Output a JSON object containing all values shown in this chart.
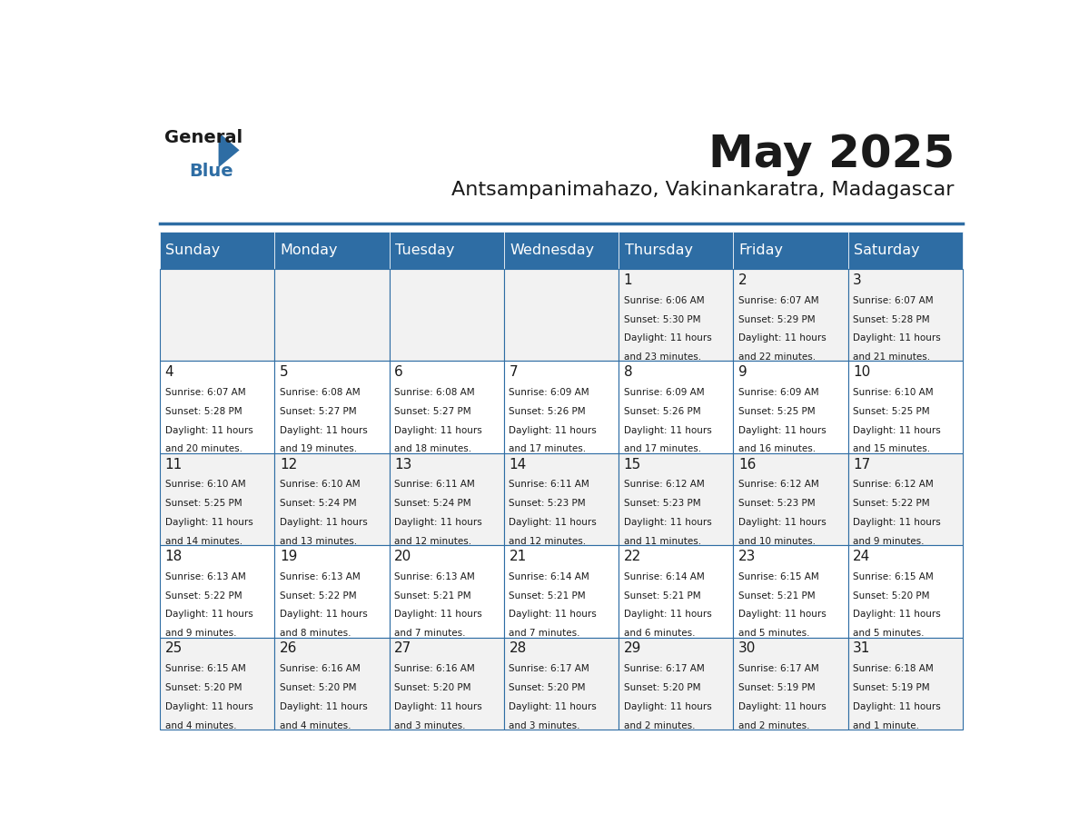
{
  "title": "May 2025",
  "subtitle": "Antsampanimahazo, Vakinankaratra, Madagascar",
  "header_bg_color": "#2E6DA4",
  "header_text_color": "#FFFFFF",
  "cell_bg_even": "#F2F2F2",
  "cell_bg_odd": "#FFFFFF",
  "border_color": "#2E6DA4",
  "day_headers": [
    "Sunday",
    "Monday",
    "Tuesday",
    "Wednesday",
    "Thursday",
    "Friday",
    "Saturday"
  ],
  "calendar": [
    [
      {
        "day": "",
        "sunrise": "",
        "sunset": "",
        "daylight": ""
      },
      {
        "day": "",
        "sunrise": "",
        "sunset": "",
        "daylight": ""
      },
      {
        "day": "",
        "sunrise": "",
        "sunset": "",
        "daylight": ""
      },
      {
        "day": "",
        "sunrise": "",
        "sunset": "",
        "daylight": ""
      },
      {
        "day": "1",
        "sunrise": "6:06 AM",
        "sunset": "5:30 PM",
        "daylight": "11 hours and 23 minutes."
      },
      {
        "day": "2",
        "sunrise": "6:07 AM",
        "sunset": "5:29 PM",
        "daylight": "11 hours and 22 minutes."
      },
      {
        "day": "3",
        "sunrise": "6:07 AM",
        "sunset": "5:28 PM",
        "daylight": "11 hours and 21 minutes."
      }
    ],
    [
      {
        "day": "4",
        "sunrise": "6:07 AM",
        "sunset": "5:28 PM",
        "daylight": "11 hours and 20 minutes."
      },
      {
        "day": "5",
        "sunrise": "6:08 AM",
        "sunset": "5:27 PM",
        "daylight": "11 hours and 19 minutes."
      },
      {
        "day": "6",
        "sunrise": "6:08 AM",
        "sunset": "5:27 PM",
        "daylight": "11 hours and 18 minutes."
      },
      {
        "day": "7",
        "sunrise": "6:09 AM",
        "sunset": "5:26 PM",
        "daylight": "11 hours and 17 minutes."
      },
      {
        "day": "8",
        "sunrise": "6:09 AM",
        "sunset": "5:26 PM",
        "daylight": "11 hours and 17 minutes."
      },
      {
        "day": "9",
        "sunrise": "6:09 AM",
        "sunset": "5:25 PM",
        "daylight": "11 hours and 16 minutes."
      },
      {
        "day": "10",
        "sunrise": "6:10 AM",
        "sunset": "5:25 PM",
        "daylight": "11 hours and 15 minutes."
      }
    ],
    [
      {
        "day": "11",
        "sunrise": "6:10 AM",
        "sunset": "5:25 PM",
        "daylight": "11 hours and 14 minutes."
      },
      {
        "day": "12",
        "sunrise": "6:10 AM",
        "sunset": "5:24 PM",
        "daylight": "11 hours and 13 minutes."
      },
      {
        "day": "13",
        "sunrise": "6:11 AM",
        "sunset": "5:24 PM",
        "daylight": "11 hours and 12 minutes."
      },
      {
        "day": "14",
        "sunrise": "6:11 AM",
        "sunset": "5:23 PM",
        "daylight": "11 hours and 12 minutes."
      },
      {
        "day": "15",
        "sunrise": "6:12 AM",
        "sunset": "5:23 PM",
        "daylight": "11 hours and 11 minutes."
      },
      {
        "day": "16",
        "sunrise": "6:12 AM",
        "sunset": "5:23 PM",
        "daylight": "11 hours and 10 minutes."
      },
      {
        "day": "17",
        "sunrise": "6:12 AM",
        "sunset": "5:22 PM",
        "daylight": "11 hours and 9 minutes."
      }
    ],
    [
      {
        "day": "18",
        "sunrise": "6:13 AM",
        "sunset": "5:22 PM",
        "daylight": "11 hours and 9 minutes."
      },
      {
        "day": "19",
        "sunrise": "6:13 AM",
        "sunset": "5:22 PM",
        "daylight": "11 hours and 8 minutes."
      },
      {
        "day": "20",
        "sunrise": "6:13 AM",
        "sunset": "5:21 PM",
        "daylight": "11 hours and 7 minutes."
      },
      {
        "day": "21",
        "sunrise": "6:14 AM",
        "sunset": "5:21 PM",
        "daylight": "11 hours and 7 minutes."
      },
      {
        "day": "22",
        "sunrise": "6:14 AM",
        "sunset": "5:21 PM",
        "daylight": "11 hours and 6 minutes."
      },
      {
        "day": "23",
        "sunrise": "6:15 AM",
        "sunset": "5:21 PM",
        "daylight": "11 hours and 5 minutes."
      },
      {
        "day": "24",
        "sunrise": "6:15 AM",
        "sunset": "5:20 PM",
        "daylight": "11 hours and 5 minutes."
      }
    ],
    [
      {
        "day": "25",
        "sunrise": "6:15 AM",
        "sunset": "5:20 PM",
        "daylight": "11 hours and 4 minutes."
      },
      {
        "day": "26",
        "sunrise": "6:16 AM",
        "sunset": "5:20 PM",
        "daylight": "11 hours and 4 minutes."
      },
      {
        "day": "27",
        "sunrise": "6:16 AM",
        "sunset": "5:20 PM",
        "daylight": "11 hours and 3 minutes."
      },
      {
        "day": "28",
        "sunrise": "6:17 AM",
        "sunset": "5:20 PM",
        "daylight": "11 hours and 3 minutes."
      },
      {
        "day": "29",
        "sunrise": "6:17 AM",
        "sunset": "5:20 PM",
        "daylight": "11 hours and 2 minutes."
      },
      {
        "day": "30",
        "sunrise": "6:17 AM",
        "sunset": "5:19 PM",
        "daylight": "11 hours and 2 minutes."
      },
      {
        "day": "31",
        "sunrise": "6:18 AM",
        "sunset": "5:19 PM",
        "daylight": "11 hours and 1 minute."
      }
    ]
  ],
  "logo_text_general": "General",
  "logo_text_blue": "Blue",
  "logo_triangle_color": "#2E6DA4"
}
